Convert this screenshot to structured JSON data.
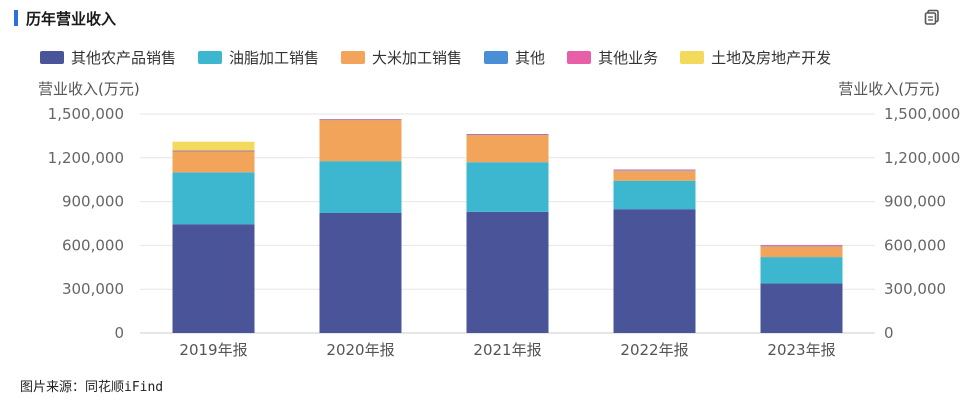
{
  "header": {
    "title": "历年营业收入",
    "icons": [
      "copy-icon"
    ]
  },
  "colors": {
    "title_accent": "#2f6fd8",
    "series": [
      "#4a5599",
      "#3db7cf",
      "#f2a55a",
      "#4a8fd6",
      "#e85fa8",
      "#f3d95c"
    ]
  },
  "chart_data": {
    "type": "bar",
    "stacked": true,
    "categories": [
      "2019年报",
      "2020年报",
      "2021年报",
      "2022年报",
      "2023年报"
    ],
    "series": [
      {
        "name": "其他农产品销售",
        "values": [
          745000,
          822000,
          830000,
          848000,
          340000
        ]
      },
      {
        "name": "油脂加工销售",
        "values": [
          355000,
          355000,
          340000,
          195000,
          180000
        ]
      },
      {
        "name": "大米加工销售",
        "values": [
          145000,
          283000,
          188000,
          68000,
          74000
        ]
      },
      {
        "name": "其他",
        "values": [
          2000,
          2000,
          2000,
          4000,
          3000
        ]
      },
      {
        "name": "其他业务",
        "values": [
          3000,
          3000,
          3000,
          5000,
          6000
        ]
      },
      {
        "name": "土地及房地产开发",
        "values": [
          60000,
          0,
          0,
          0,
          0
        ]
      }
    ],
    "ylabel_left": "营业收入(万元)",
    "ylabel_right": "营业收入(万元)",
    "ylim": [
      0,
      1500000
    ],
    "yticks": [
      "0",
      "300,000",
      "600,000",
      "900,000",
      "1,200,000",
      "1,500,000"
    ],
    "grid": true,
    "legend_position": "top-left"
  },
  "footer": {
    "source": "图片来源：同花顺iFind"
  }
}
